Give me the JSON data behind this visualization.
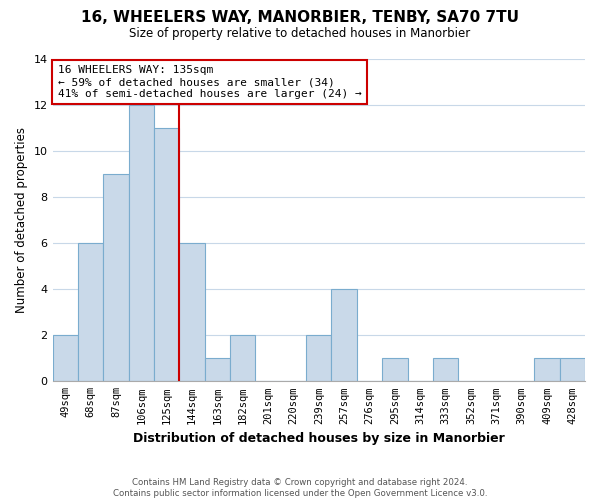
{
  "title": "16, WHEELERS WAY, MANORBIER, TENBY, SA70 7TU",
  "subtitle": "Size of property relative to detached houses in Manorbier",
  "xlabel": "Distribution of detached houses by size in Manorbier",
  "ylabel": "Number of detached properties",
  "categories": [
    "49sqm",
    "68sqm",
    "87sqm",
    "106sqm",
    "125sqm",
    "144sqm",
    "163sqm",
    "182sqm",
    "201sqm",
    "220sqm",
    "239sqm",
    "257sqm",
    "276sqm",
    "295sqm",
    "314sqm",
    "333sqm",
    "352sqm",
    "371sqm",
    "390sqm",
    "409sqm",
    "428sqm"
  ],
  "values": [
    2,
    6,
    9,
    12,
    11,
    6,
    1,
    2,
    0,
    0,
    2,
    4,
    0,
    1,
    0,
    1,
    0,
    0,
    0,
    1,
    1
  ],
  "bar_color": "#c9d9e9",
  "bar_edge_color": "#7aacce",
  "vline_x_index": 4.5,
  "vline_color": "#cc0000",
  "annotation_text": "16 WHEELERS WAY: 135sqm\n← 59% of detached houses are smaller (34)\n41% of semi-detached houses are larger (24) →",
  "annotation_box_edgecolor": "#cc0000",
  "annotation_box_facecolor": "#ffffff",
  "ylim": [
    0,
    14
  ],
  "yticks": [
    0,
    2,
    4,
    6,
    8,
    10,
    12,
    14
  ],
  "footer_line1": "Contains HM Land Registry data © Crown copyright and database right 2024.",
  "footer_line2": "Contains public sector information licensed under the Open Government Licence v3.0.",
  "background_color": "#ffffff",
  "grid_color": "#c8d8e8"
}
